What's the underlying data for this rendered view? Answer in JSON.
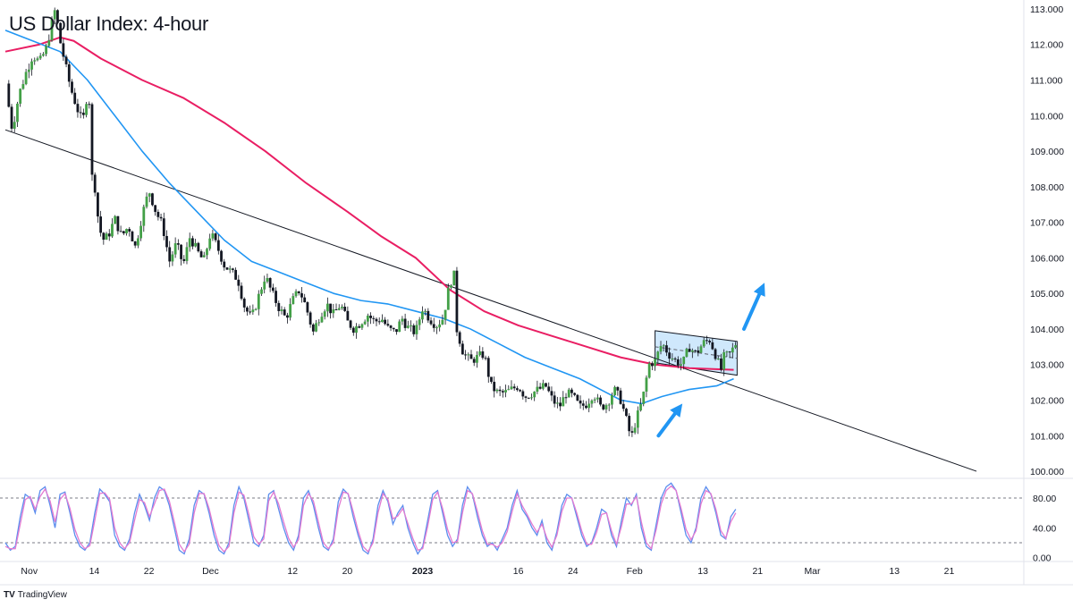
{
  "title": "US Dollar Index: 4-hour",
  "brand": {
    "logo": "TV",
    "name": "TradingView"
  },
  "chart_data": [
    {
      "type": "line",
      "subtype": "candlestick",
      "title": "US Dollar Index: 4-hour",
      "ylim": [
        99.8,
        113.2
      ],
      "price_ticks": [
        "113.000",
        "112.000",
        "111.000",
        "110.000",
        "109.000",
        "108.000",
        "107.000",
        "106.000",
        "105.000",
        "104.000",
        "103.000",
        "102.000",
        "101.000",
        "100.000"
      ],
      "x_ticks": [
        {
          "label": "Nov",
          "x": 3.5
        },
        {
          "label": "14",
          "x": 13
        },
        {
          "label": "22",
          "x": 21
        },
        {
          "label": "Dec",
          "x": 30
        },
        {
          "label": "12",
          "x": 42
        },
        {
          "label": "20",
          "x": 50
        },
        {
          "label": "2023",
          "x": 61
        },
        {
          "label": "16",
          "x": 75
        },
        {
          "label": "24",
          "x": 83
        },
        {
          "label": "Feb",
          "x": 92
        },
        {
          "label": "13",
          "x": 102
        },
        {
          "label": "21",
          "x": 110
        },
        {
          "label": "Mar",
          "x": 118
        },
        {
          "label": "13",
          "x": 130
        },
        {
          "label": "21",
          "x": 138
        }
      ],
      "price_path": [
        [
          0,
          110.9
        ],
        [
          1,
          109.6
        ],
        [
          2,
          110.6
        ],
        [
          3,
          111.2
        ],
        [
          4,
          111.7
        ],
        [
          5,
          111.5
        ],
        [
          6,
          111.9
        ],
        [
          6.8,
          112.6
        ],
        [
          7.3,
          113.0
        ],
        [
          8,
          112.1
        ],
        [
          8.8,
          111.4
        ],
        [
          9.5,
          110.8
        ],
        [
          10.5,
          110.2
        ],
        [
          11.3,
          109.8
        ],
        [
          12.2,
          110.9
        ],
        [
          12.5,
          108.4
        ],
        [
          13.2,
          107.9
        ],
        [
          13.6,
          107.0
        ],
        [
          14.2,
          106.5
        ],
        [
          15,
          106.6
        ],
        [
          16,
          107.1
        ],
        [
          17,
          106.6
        ],
        [
          18,
          106.9
        ],
        [
          19,
          106.3
        ],
        [
          20,
          107.2
        ],
        [
          21,
          107.9
        ],
        [
          22,
          107.3
        ],
        [
          23,
          106.9
        ],
        [
          24,
          105.9
        ],
        [
          25,
          106.4
        ],
        [
          26,
          105.8
        ],
        [
          27,
          106.6
        ],
        [
          28,
          106.2
        ],
        [
          29,
          105.9
        ],
        [
          30,
          106.7
        ],
        [
          31,
          106.3
        ],
        [
          32,
          105.8
        ],
        [
          33,
          105.6
        ],
        [
          34,
          105.4
        ],
        [
          35,
          104.6
        ],
        [
          36,
          104.3
        ],
        [
          37,
          104.9
        ],
        [
          38,
          105.5
        ],
        [
          39,
          105.0
        ],
        [
          40,
          104.6
        ],
        [
          41,
          104.3
        ],
        [
          42,
          104.8
        ],
        [
          43,
          105.1
        ],
        [
          44,
          104.6
        ],
        [
          45,
          103.9
        ],
        [
          46,
          104.4
        ],
        [
          47,
          104.7
        ],
        [
          48,
          104.4
        ],
        [
          49,
          104.7
        ],
        [
          50,
          104.2
        ],
        [
          51,
          104.0
        ],
        [
          52,
          104.2
        ],
        [
          53,
          104.4
        ],
        [
          54,
          104.2
        ],
        [
          55,
          104.3
        ],
        [
          56,
          104.0
        ],
        [
          57,
          103.9
        ],
        [
          58,
          104.3
        ],
        [
          59,
          104.0
        ],
        [
          60,
          103.9
        ],
        [
          61,
          104.6
        ],
        [
          62,
          104.3
        ],
        [
          63,
          104.1
        ],
        [
          64,
          104.3
        ],
        [
          65,
          105.3
        ],
        [
          65.6,
          105.5
        ],
        [
          66,
          104.0
        ],
        [
          67,
          103.3
        ],
        [
          68,
          103.1
        ],
        [
          69,
          103.2
        ],
        [
          70,
          103.3
        ],
        [
          71,
          102.4
        ],
        [
          72,
          102.2
        ],
        [
          73,
          102.2
        ],
        [
          74,
          102.3
        ],
        [
          75,
          102.4
        ],
        [
          76,
          102.1
        ],
        [
          77,
          102.2
        ],
        [
          78,
          102.3
        ],
        [
          79,
          102.4
        ],
        [
          80,
          102.0
        ],
        [
          81,
          101.8
        ],
        [
          82,
          102.2
        ],
        [
          83,
          102.1
        ],
        [
          84,
          101.8
        ],
        [
          85,
          101.9
        ],
        [
          86,
          102.2
        ],
        [
          87,
          101.8
        ],
        [
          88,
          101.9
        ],
        [
          89,
          102.3
        ],
        [
          90,
          102.0
        ],
        [
          91,
          101.3
        ],
        [
          91.5,
          100.9
        ],
        [
          92,
          101.3
        ],
        [
          93,
          101.9
        ],
        [
          93.6,
          102.4
        ],
        [
          94,
          103.0
        ],
        [
          95,
          103.1
        ],
        [
          96,
          103.6
        ],
        [
          97,
          103.3
        ],
        [
          98,
          103.1
        ],
        [
          99,
          103.0
        ],
        [
          100,
          103.5
        ],
        [
          101,
          103.3
        ],
        [
          102,
          103.6
        ],
        [
          103,
          103.7
        ],
        [
          104,
          103.2
        ],
        [
          104.6,
          102.8
        ],
        [
          105,
          103.2
        ],
        [
          106,
          103.3
        ],
        [
          106.8,
          103.6
        ]
      ],
      "series": [
        {
          "name": "",
          "color": "#2962ff",
          "values_desc": "price"
        },
        {
          "name": "",
          "color": "#e91e63",
          "points": [
            [
              0,
              111.8
            ],
            [
              5,
              112.0
            ],
            [
              8,
              112.2
            ],
            [
              10,
              112.1
            ],
            [
              14,
              111.6
            ],
            [
              20,
              111.0
            ],
            [
              26,
              110.5
            ],
            [
              32,
              109.8
            ],
            [
              38,
              109.0
            ],
            [
              44,
              108.1
            ],
            [
              50,
              107.3
            ],
            [
              55,
              106.6
            ],
            [
              60,
              106.0
            ],
            [
              65,
              105.1
            ],
            [
              70,
              104.5
            ],
            [
              75,
              104.1
            ],
            [
              80,
              103.8
            ],
            [
              85,
              103.5
            ],
            [
              90,
              103.2
            ],
            [
              95,
              103.0
            ],
            [
              100,
              102.9
            ],
            [
              106.5,
              102.85
            ]
          ]
        },
        {
          "name": "",
          "color": "#2196f3",
          "points": [
            [
              0,
              112.4
            ],
            [
              4,
              112.1
            ],
            [
              8,
              111.8
            ],
            [
              12,
              111.0
            ],
            [
              16,
              110.0
            ],
            [
              20,
              109.0
            ],
            [
              24,
              108.1
            ],
            [
              28,
              107.3
            ],
            [
              32,
              106.5
            ],
            [
              36,
              105.9
            ],
            [
              40,
              105.6
            ],
            [
              44,
              105.3
            ],
            [
              48,
              105.0
            ],
            [
              52,
              104.8
            ],
            [
              56,
              104.7
            ],
            [
              60,
              104.5
            ],
            [
              64,
              104.3
            ],
            [
              68,
              104.0
            ],
            [
              72,
              103.6
            ],
            [
              76,
              103.2
            ],
            [
              80,
              102.9
            ],
            [
              84,
              102.6
            ],
            [
              88,
              102.2
            ],
            [
              90,
              102.0
            ],
            [
              93,
              101.9
            ],
            [
              96,
              102.1
            ],
            [
              100,
              102.3
            ],
            [
              104,
              102.4
            ],
            [
              106.5,
              102.6
            ]
          ]
        }
      ],
      "trendline": {
        "start": [
          0,
          109.6
        ],
        "end": [
          142,
          100.0
        ]
      },
      "channel": {
        "upper": [
          [
            95,
            103.95
          ],
          [
            107,
            103.65
          ]
        ],
        "lower": [
          [
            95,
            103.05
          ],
          [
            107,
            102.7
          ]
        ],
        "fill": "#bbdefb"
      },
      "arrows": [
        {
          "from": [
            95.5,
            101.0
          ],
          "to": [
            99,
            101.9
          ]
        },
        {
          "from": [
            108,
            104.0
          ],
          "to": [
            111,
            105.3
          ]
        }
      ]
    },
    {
      "type": "line",
      "title": "",
      "ylim": [
        -4,
        104
      ],
      "ticks": [
        "80.00",
        "40.00",
        "0.00"
      ],
      "levels": [
        80,
        20
      ],
      "series": [
        {
          "name": "",
          "color": "#5b8dee",
          "values": [
            20,
            10,
            15,
            55,
            85,
            80,
            60,
            90,
            95,
            70,
            40,
            85,
            88,
            60,
            30,
            15,
            10,
            20,
            60,
            92,
            85,
            75,
            30,
            15,
            10,
            25,
            60,
            85,
            70,
            50,
            80,
            95,
            90,
            70,
            40,
            10,
            5,
            25,
            70,
            90,
            85,
            60,
            30,
            10,
            5,
            20,
            70,
            95,
            80,
            50,
            20,
            15,
            30,
            85,
            90,
            65,
            40,
            20,
            10,
            30,
            80,
            90,
            70,
            40,
            15,
            10,
            25,
            75,
            92,
            85,
            55,
            30,
            10,
            5,
            25,
            70,
            90,
            75,
            45,
            60,
            70,
            40,
            20,
            5,
            15,
            50,
            85,
            90,
            60,
            30,
            15,
            25,
            70,
            95,
            85,
            55,
            30,
            15,
            20,
            10,
            25,
            40,
            70,
            90,
            65,
            55,
            40,
            30,
            50,
            20,
            10,
            35,
            70,
            85,
            80,
            55,
            30,
            15,
            20,
            40,
            65,
            60,
            30,
            15,
            50,
            80,
            70,
            85,
            40,
            15,
            10,
            45,
            80,
            95,
            100,
            90,
            60,
            30,
            20,
            40,
            80,
            95,
            85,
            60,
            30,
            25,
            55,
            65
          ]
        },
        {
          "name": "",
          "color": "#e37bd1",
          "values": [
            15,
            12,
            12,
            45,
            78,
            82,
            65,
            82,
            92,
            76,
            48,
            78,
            86,
            66,
            38,
            20,
            12,
            16,
            50,
            86,
            87,
            78,
            40,
            20,
            12,
            20,
            50,
            78,
            74,
            55,
            72,
            90,
            92,
            76,
            48,
            18,
            8,
            18,
            60,
            86,
            86,
            66,
            38,
            16,
            8,
            15,
            60,
            88,
            84,
            58,
            28,
            18,
            25,
            76,
            88,
            72,
            48,
            26,
            14,
            24,
            70,
            86,
            76,
            48,
            20,
            12,
            20,
            65,
            88,
            86,
            62,
            36,
            15,
            8,
            20,
            60,
            86,
            78,
            52,
            56,
            66,
            46,
            26,
            10,
            12,
            42,
            78,
            88,
            66,
            38,
            20,
            22,
            60,
            90,
            86,
            62,
            36,
            18,
            18,
            14,
            20,
            35,
            62,
            86,
            70,
            58,
            45,
            34,
            45,
            26,
            14,
            30,
            62,
            80,
            80,
            60,
            36,
            18,
            18,
            34,
            58,
            60,
            36,
            18,
            42,
            72,
            72,
            82,
            48,
            20,
            12,
            38,
            72,
            90,
            96,
            90,
            66,
            38,
            24,
            36,
            72,
            90,
            86,
            65,
            36,
            26,
            48,
            60
          ]
        }
      ]
    }
  ]
}
